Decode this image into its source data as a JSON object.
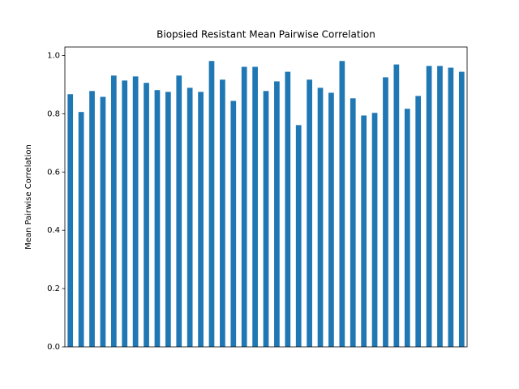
{
  "chart_data": {
    "type": "bar",
    "title": "Biopsied Resistant Mean Pairwise Correlation",
    "y_label": "Mean Pairwise Correlation",
    "categories": [
      null,
      null,
      null,
      null,
      null,
      null,
      null,
      null,
      null,
      null,
      null,
      null,
      null,
      null,
      null,
      null,
      null,
      null,
      null,
      null,
      null,
      null,
      null,
      null,
      null,
      null,
      null,
      null,
      null,
      null,
      null,
      null,
      null,
      null,
      null,
      null,
      null
    ],
    "values": [
      0.867,
      0.806,
      0.878,
      0.858,
      0.931,
      0.914,
      0.928,
      0.906,
      0.881,
      0.875,
      0.931,
      0.889,
      0.875,
      0.981,
      0.917,
      0.844,
      0.961,
      0.961,
      0.878,
      0.911,
      0.944,
      0.761,
      0.917,
      0.889,
      0.872,
      0.981,
      0.853,
      0.794,
      0.803,
      0.925,
      0.969,
      0.817,
      0.861,
      0.964,
      0.964,
      0.958,
      0.944
    ],
    "color": "#1f77b4",
    "ylim": [
      0,
      1.029
    ],
    "yticks": [
      {
        "value": 0,
        "label": "0.0"
      },
      0.2,
      0.4,
      0.6,
      0.8,
      {
        "value": 1,
        "label": "1.0"
      }
    ]
  }
}
